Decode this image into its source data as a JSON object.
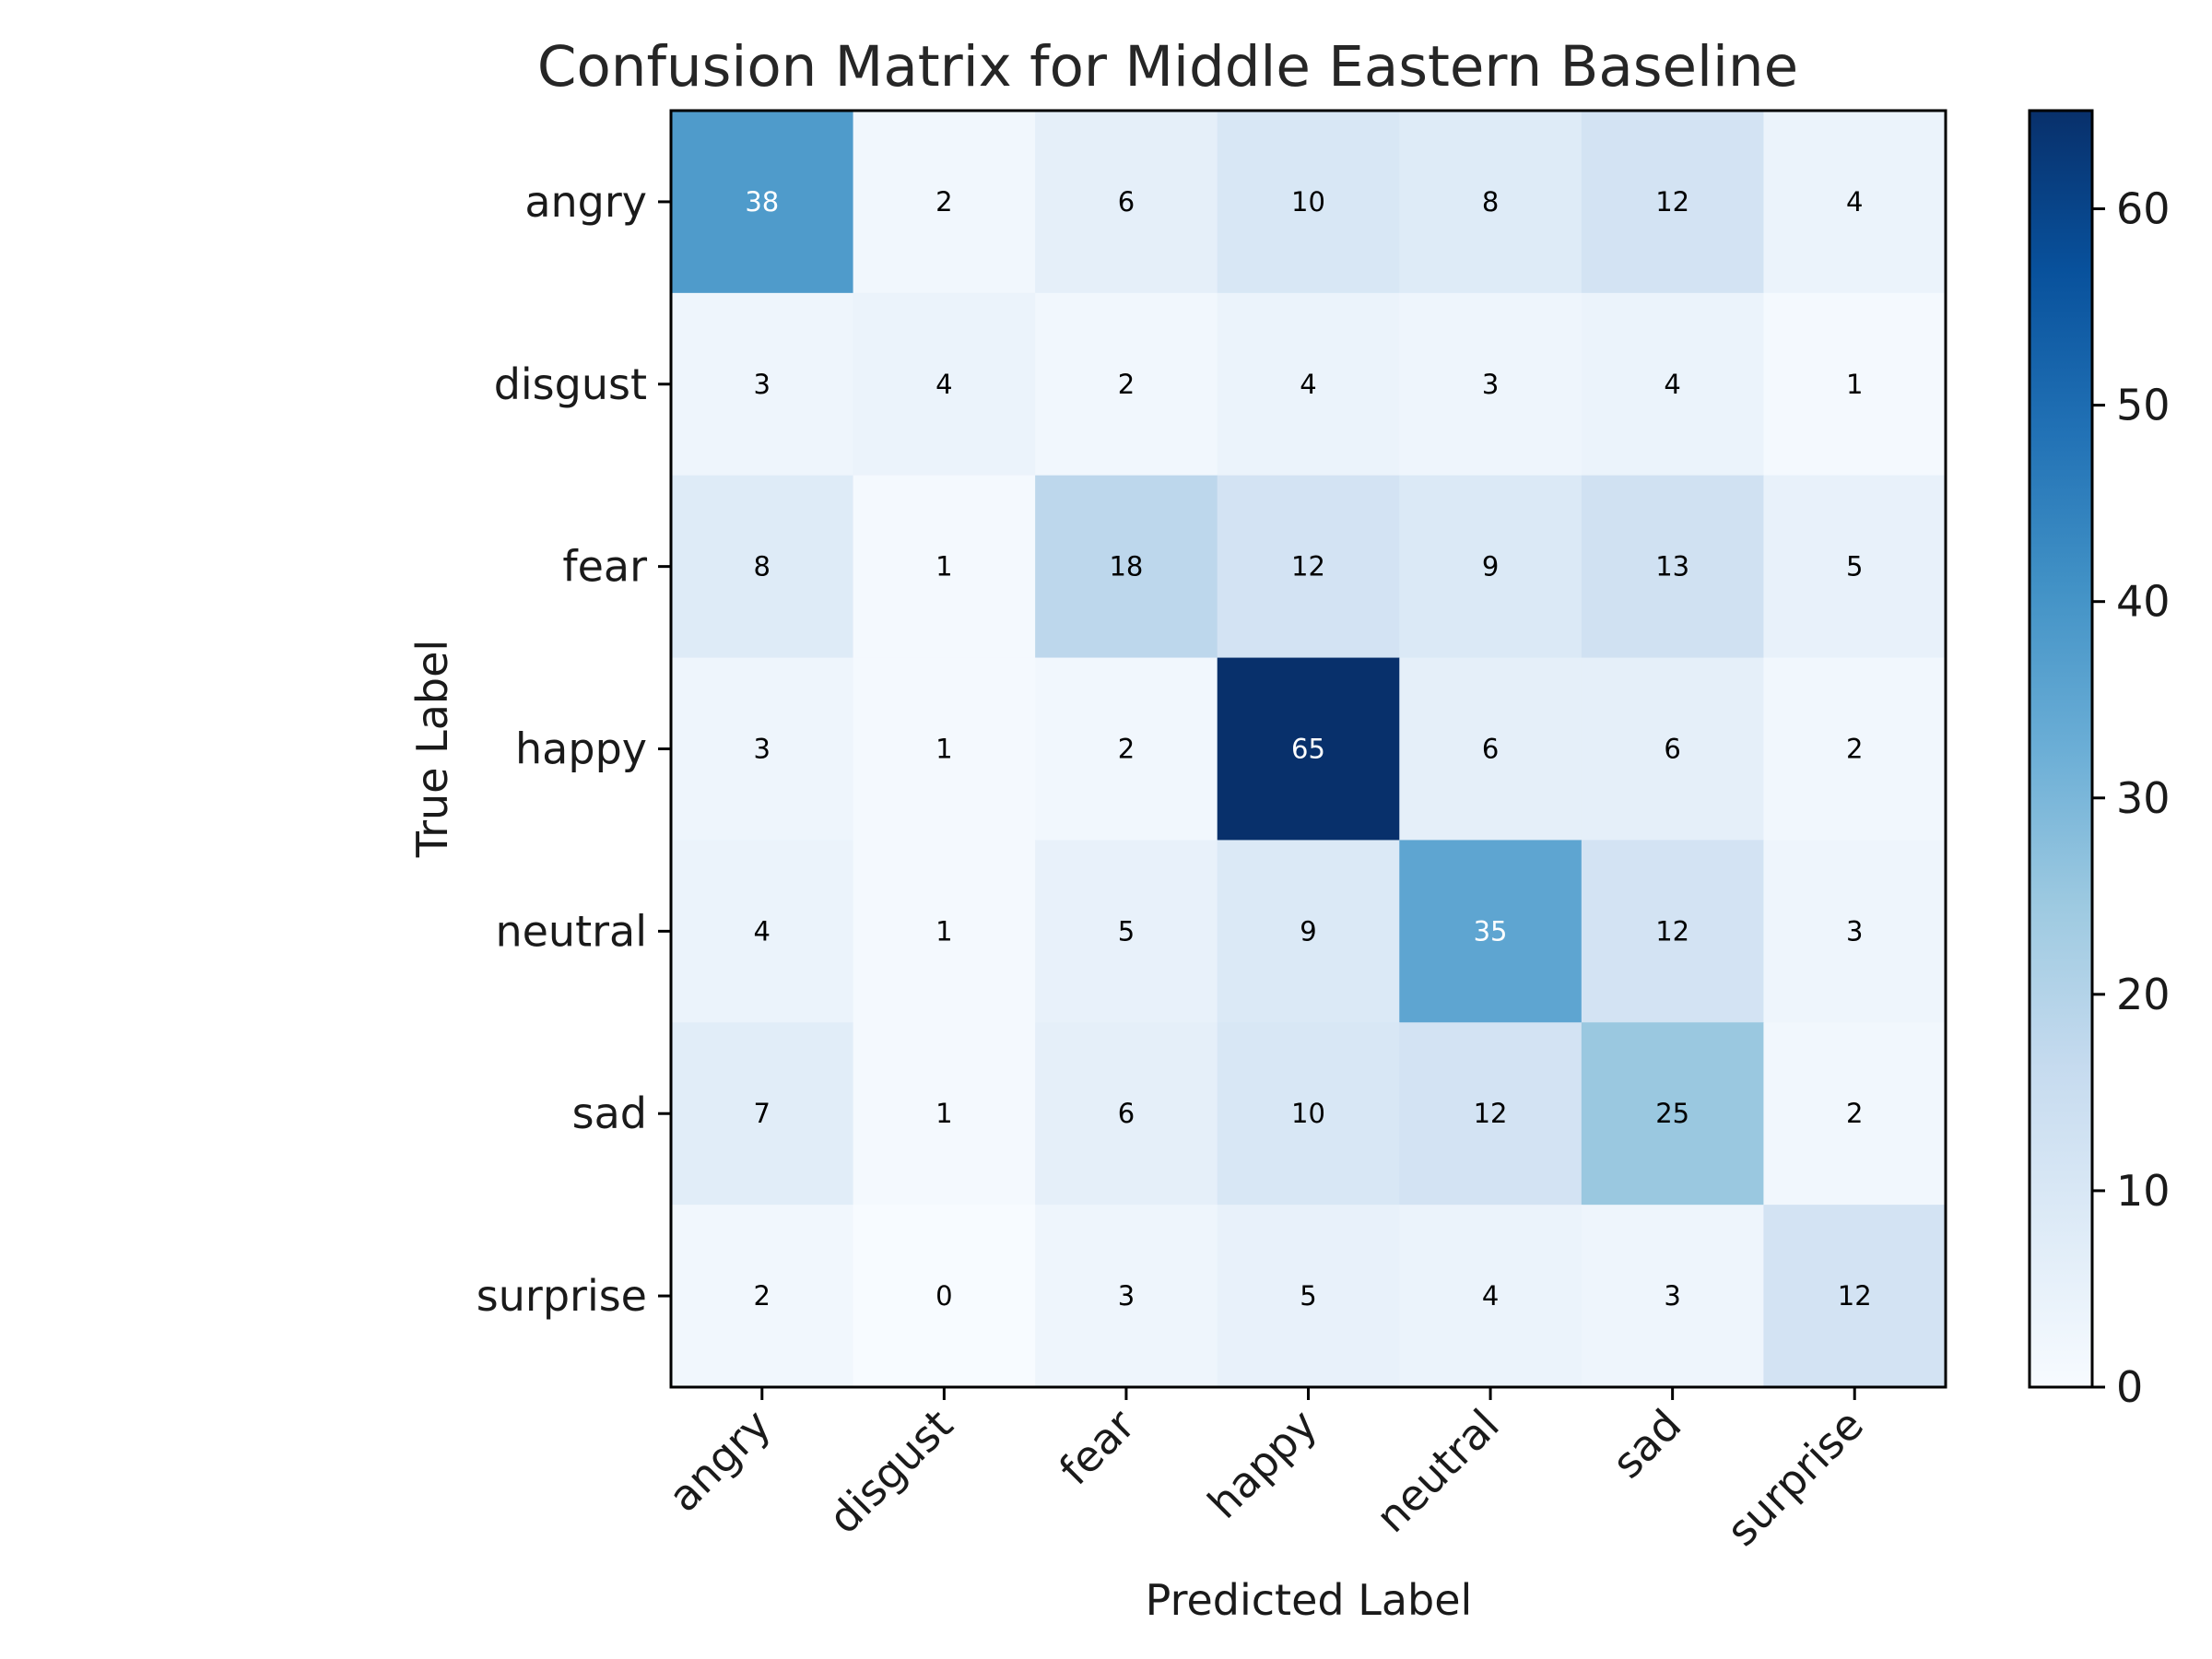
{
  "chart_data": {
    "type": "heatmap",
    "title": "Confusion Matrix for Middle Eastern Baseline",
    "xlabel": "Predicted Label",
    "ylabel": "True Label",
    "x_categories": [
      "angry",
      "disgust",
      "fear",
      "happy",
      "neutral",
      "sad",
      "surprise"
    ],
    "y_categories": [
      "angry",
      "disgust",
      "fear",
      "happy",
      "neutral",
      "sad",
      "surprise"
    ],
    "values": [
      [
        38,
        2,
        6,
        10,
        8,
        12,
        4
      ],
      [
        3,
        4,
        2,
        4,
        3,
        4,
        1
      ],
      [
        8,
        1,
        18,
        12,
        9,
        13,
        5
      ],
      [
        3,
        1,
        2,
        65,
        6,
        6,
        2
      ],
      [
        4,
        1,
        5,
        9,
        35,
        12,
        3
      ],
      [
        7,
        1,
        6,
        10,
        12,
        25,
        2
      ],
      [
        2,
        0,
        3,
        5,
        4,
        3,
        12
      ]
    ],
    "colormap": "Blues",
    "colorbar": {
      "range": [
        0,
        65
      ],
      "ticks": [
        0,
        10,
        20,
        30,
        40,
        50,
        60
      ]
    },
    "grid": false
  }
}
